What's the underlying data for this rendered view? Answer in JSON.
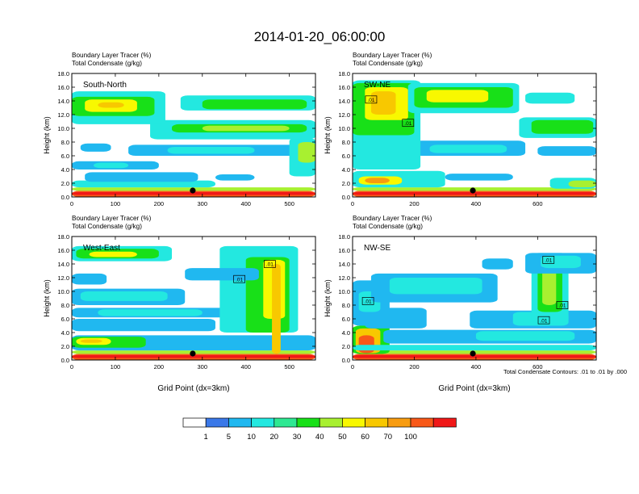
{
  "figure": {
    "title": "2014-01-20_06:00:00",
    "footer_note": "Total Condensate Contours: .01 to .01 by .000",
    "shared_xlabel": "Grid Point (dx=3km)"
  },
  "colorbar": {
    "colors": [
      "#ffffff",
      "#3a78e8",
      "#20b8f0",
      "#23e8e0",
      "#2ee892",
      "#18e018",
      "#a8f030",
      "#f8f800",
      "#f8c800",
      "#f89c10",
      "#f85818",
      "#f01818"
    ],
    "labels": [
      "1",
      "5",
      "10",
      "20",
      "30",
      "40",
      "50",
      "60",
      "70",
      "100"
    ]
  },
  "chart_data": [
    {
      "type": "heatmap",
      "title": "South-North",
      "subtitle_lines": [
        "Boundary Layer Tracer   (%)",
        "Total Condensate   (g/kg)"
      ],
      "ylabel": "Height (km)",
      "xlabel": "",
      "xlim": [
        0,
        560
      ],
      "ylim": [
        0,
        18
      ],
      "x_ticks": [
        0,
        100,
        200,
        300,
        400,
        500
      ],
      "y_ticks": [
        0.0,
        2.0,
        4.0,
        6.0,
        8.0,
        10.0,
        12.0,
        14.0,
        16.0,
        18.0
      ],
      "y_tick_labels": [
        "0.0",
        "2.0",
        "4.0",
        "6.0",
        "8.0",
        "10.0",
        "12.0",
        "14.0",
        "16.0",
        "18.0"
      ],
      "marker_x": 278,
      "contour_labels": [],
      "bands": [
        {
          "x": [
            0,
            560
          ],
          "y": [
            0,
            0.9
          ],
          "c": 10
        },
        {
          "x": [
            0,
            560
          ],
          "y": [
            0.3,
            0.7
          ],
          "c": 11
        },
        {
          "x": [
            0,
            560
          ],
          "y": [
            0.9,
            1.4
          ],
          "c": 6
        },
        {
          "x": [
            0,
            330
          ],
          "y": [
            1.4,
            2.4
          ],
          "c": 3
        },
        {
          "x": [
            30,
            290
          ],
          "y": [
            2.2,
            3.6
          ],
          "c": 2
        },
        {
          "x": [
            0,
            200
          ],
          "y": [
            4.0,
            5.2
          ],
          "c": 2
        },
        {
          "x": [
            50,
            130
          ],
          "y": [
            4.2,
            5.0
          ],
          "c": 3
        },
        {
          "x": [
            20,
            90
          ],
          "y": [
            6.6,
            7.8
          ],
          "c": 2
        },
        {
          "x": [
            130,
            540
          ],
          "y": [
            6.0,
            7.6
          ],
          "c": 2
        },
        {
          "x": [
            220,
            420
          ],
          "y": [
            6.3,
            7.3
          ],
          "c": 3
        },
        {
          "x": [
            500,
            560
          ],
          "y": [
            3.0,
            8.6
          ],
          "c": 3
        },
        {
          "x": [
            520,
            560
          ],
          "y": [
            5.0,
            8.0
          ],
          "c": 6
        },
        {
          "x": [
            330,
            420
          ],
          "y": [
            2.4,
            3.3
          ],
          "c": 2
        },
        {
          "x": [
            180,
            560
          ],
          "y": [
            8.4,
            11.2
          ],
          "c": 3
        },
        {
          "x": [
            230,
            540
          ],
          "y": [
            9.4,
            10.6
          ],
          "c": 5
        },
        {
          "x": [
            300,
            500
          ],
          "y": [
            9.6,
            10.4
          ],
          "c": 6
        },
        {
          "x": [
            0,
            215
          ],
          "y": [
            10.6,
            15.4
          ],
          "c": 3
        },
        {
          "x": [
            0,
            190
          ],
          "y": [
            11.8,
            14.6
          ],
          "c": 5
        },
        {
          "x": [
            30,
            150
          ],
          "y": [
            12.4,
            14.2
          ],
          "c": 7
        },
        {
          "x": [
            60,
            120
          ],
          "y": [
            13.0,
            13.8
          ],
          "c": 8
        },
        {
          "x": [
            250,
            560
          ],
          "y": [
            12.6,
            14.8
          ],
          "c": 3
        },
        {
          "x": [
            300,
            540
          ],
          "y": [
            12.8,
            14.2
          ],
          "c": 5
        }
      ]
    },
    {
      "type": "heatmap",
      "title": "SW-NE",
      "subtitle_lines": [
        "Boundary Layer Tracer   (%)",
        "Total Condensate   (g/kg)"
      ],
      "ylabel": "Height (km)",
      "xlabel": "",
      "xlim": [
        0,
        790
      ],
      "ylim": [
        0,
        18
      ],
      "x_ticks": [
        0,
        200,
        400,
        600
      ],
      "y_ticks": [
        0.0,
        2.0,
        4.0,
        6.0,
        8.0,
        10.0,
        12.0,
        14.0,
        16.0,
        18.0
      ],
      "y_tick_labels": [
        "0.0",
        "2.0",
        "4.0",
        "6.0",
        "8.0",
        "10.0",
        "12.0",
        "14.0",
        "16.0",
        "18.0"
      ],
      "marker_x": 390,
      "contour_labels": [
        {
          "text": ".01",
          "x": 60,
          "y": 14.2
        },
        {
          "text": ".01",
          "x": 180,
          "y": 10.8
        }
      ],
      "bands": [
        {
          "x": [
            0,
            790
          ],
          "y": [
            0,
            0.9
          ],
          "c": 10
        },
        {
          "x": [
            0,
            790
          ],
          "y": [
            0.3,
            0.7
          ],
          "c": 11
        },
        {
          "x": [
            0,
            790
          ],
          "y": [
            0.9,
            1.4
          ],
          "c": 6
        },
        {
          "x": [
            0,
            300
          ],
          "y": [
            1.4,
            3.8
          ],
          "c": 3
        },
        {
          "x": [
            20,
            160
          ],
          "y": [
            1.8,
            3.0
          ],
          "c": 7
        },
        {
          "x": [
            40,
            120
          ],
          "y": [
            2.0,
            2.8
          ],
          "c": 9
        },
        {
          "x": [
            300,
            520
          ],
          "y": [
            2.4,
            3.4
          ],
          "c": 2
        },
        {
          "x": [
            640,
            790
          ],
          "y": [
            1.2,
            2.8
          ],
          "c": 3
        },
        {
          "x": [
            700,
            790
          ],
          "y": [
            1.4,
            2.4
          ],
          "c": 6
        },
        {
          "x": [
            0,
            110
          ],
          "y": [
            4.6,
            9.6
          ],
          "c": 3
        },
        {
          "x": [
            200,
            560
          ],
          "y": [
            6.0,
            8.2
          ],
          "c": 2
        },
        {
          "x": [
            250,
            500
          ],
          "y": [
            6.4,
            7.6
          ],
          "c": 3
        },
        {
          "x": [
            600,
            790
          ],
          "y": [
            6.0,
            7.4
          ],
          "c": 2
        },
        {
          "x": [
            540,
            790
          ],
          "y": [
            8.6,
            11.6
          ],
          "c": 3
        },
        {
          "x": [
            580,
            780
          ],
          "y": [
            9.2,
            11.2
          ],
          "c": 5
        },
        {
          "x": [
            0,
            220
          ],
          "y": [
            4.0,
            17.0
          ],
          "c": 3
        },
        {
          "x": [
            0,
            200
          ],
          "y": [
            9.0,
            16.6
          ],
          "c": 5
        },
        {
          "x": [
            40,
            180
          ],
          "y": [
            11.2,
            16.0
          ],
          "c": 7
        },
        {
          "x": [
            60,
            140
          ],
          "y": [
            12.0,
            15.4
          ],
          "c": 8
        },
        {
          "x": [
            180,
            540
          ],
          "y": [
            12.2,
            16.6
          ],
          "c": 3
        },
        {
          "x": [
            200,
            520
          ],
          "y": [
            13.0,
            16.0
          ],
          "c": 5
        },
        {
          "x": [
            240,
            440
          ],
          "y": [
            13.8,
            15.6
          ],
          "c": 7
        },
        {
          "x": [
            560,
            720
          ],
          "y": [
            13.6,
            15.2
          ],
          "c": 3
        }
      ]
    },
    {
      "type": "heatmap",
      "title": "West-East",
      "subtitle_lines": [
        "Boundary Layer Tracer   (%)",
        "Total Condensate   (g/kg)"
      ],
      "ylabel": "Height (km)",
      "xlabel": "Grid Point (dx=3km)",
      "xlim": [
        0,
        560
      ],
      "ylim": [
        0,
        18
      ],
      "x_ticks": [
        0,
        100,
        200,
        300,
        400,
        500
      ],
      "y_ticks": [
        0.0,
        2.0,
        4.0,
        6.0,
        8.0,
        10.0,
        12.0,
        14.0,
        16.0,
        18.0
      ],
      "y_tick_labels": [
        "0.0",
        "2.0",
        "4.0",
        "6.0",
        "8.0",
        "10.0",
        "12.0",
        "14.0",
        "16.0",
        "18.0"
      ],
      "marker_x": 278,
      "contour_labels": [
        {
          "text": ".01",
          "x": 455,
          "y": 14.0
        },
        {
          "text": ".01",
          "x": 385,
          "y": 11.8
        }
      ],
      "bands": [
        {
          "x": [
            0,
            560
          ],
          "y": [
            0,
            0.9
          ],
          "c": 10
        },
        {
          "x": [
            0,
            560
          ],
          "y": [
            0.3,
            0.7
          ],
          "c": 11
        },
        {
          "x": [
            0,
            560
          ],
          "y": [
            0.9,
            1.4
          ],
          "c": 6
        },
        {
          "x": [
            0,
            560
          ],
          "y": [
            1.4,
            3.6
          ],
          "c": 2
        },
        {
          "x": [
            0,
            170
          ],
          "y": [
            1.8,
            3.4
          ],
          "c": 5
        },
        {
          "x": [
            10,
            90
          ],
          "y": [
            2.2,
            3.2
          ],
          "c": 7
        },
        {
          "x": [
            20,
            70
          ],
          "y": [
            2.5,
            3.0
          ],
          "c": 8
        },
        {
          "x": [
            0,
            330
          ],
          "y": [
            4.2,
            6.0
          ],
          "c": 2
        },
        {
          "x": [
            0,
            420
          ],
          "y": [
            6.2,
            7.6
          ],
          "c": 2
        },
        {
          "x": [
            60,
            300
          ],
          "y": [
            6.4,
            7.4
          ],
          "c": 3
        },
        {
          "x": [
            0,
            260
          ],
          "y": [
            8.0,
            10.4
          ],
          "c": 2
        },
        {
          "x": [
            20,
            220
          ],
          "y": [
            8.6,
            10.0
          ],
          "c": 3
        },
        {
          "x": [
            340,
            520
          ],
          "y": [
            4.0,
            16.6
          ],
          "c": 3
        },
        {
          "x": [
            400,
            500
          ],
          "y": [
            4.0,
            15.0
          ],
          "c": 5
        },
        {
          "x": [
            440,
            490
          ],
          "y": [
            6.0,
            14.6
          ],
          "c": 7
        },
        {
          "x": [
            460,
            480
          ],
          "y": [
            0.9,
            14.0
          ],
          "c": 8
        },
        {
          "x": [
            260,
            430
          ],
          "y": [
            11.6,
            13.4
          ],
          "c": 2
        },
        {
          "x": [
            0,
            230
          ],
          "y": [
            14.4,
            16.6
          ],
          "c": 3
        },
        {
          "x": [
            10,
            200
          ],
          "y": [
            14.8,
            16.2
          ],
          "c": 5
        },
        {
          "x": [
            40,
            150
          ],
          "y": [
            15.0,
            15.8
          ],
          "c": 7
        },
        {
          "x": [
            0,
            80
          ],
          "y": [
            11.0,
            12.6
          ],
          "c": 2
        }
      ]
    },
    {
      "type": "heatmap",
      "title": "NW-SE",
      "subtitle_lines": [
        "Boundary Layer Tracer   (%)",
        "Total Condensate   (g/kg)"
      ],
      "ylabel": "Height (km)",
      "xlabel": "Grid Point (dx=3km)",
      "xlim": [
        0,
        790
      ],
      "ylim": [
        0,
        18
      ],
      "x_ticks": [
        0,
        200,
        400,
        600
      ],
      "y_ticks": [
        0.0,
        2.0,
        4.0,
        6.0,
        8.0,
        10.0,
        12.0,
        14.0,
        16.0,
        18.0
      ],
      "y_tick_labels": [
        "0.0",
        "2.0",
        "4.0",
        "6.0",
        "8.0",
        "10.0",
        "12.0",
        "14.0",
        "16.0",
        "18.0"
      ],
      "marker_x": 390,
      "contour_labels": [
        {
          "text": ".01",
          "x": 50,
          "y": 8.6
        },
        {
          "text": ".01",
          "x": 635,
          "y": 14.6
        },
        {
          "text": ".01",
          "x": 680,
          "y": 8.0
        },
        {
          "text": ".01",
          "x": 620,
          "y": 5.8
        }
      ],
      "bands": [
        {
          "x": [
            0,
            790
          ],
          "y": [
            0,
            0.9
          ],
          "c": 10
        },
        {
          "x": [
            0,
            790
          ],
          "y": [
            0.3,
            0.7
          ],
          "c": 11
        },
        {
          "x": [
            0,
            790
          ],
          "y": [
            0.9,
            1.4
          ],
          "c": 6
        },
        {
          "x": [
            0,
            120
          ],
          "y": [
            0.9,
            5.0
          ],
          "c": 5
        },
        {
          "x": [
            10,
            90
          ],
          "y": [
            1.0,
            4.6
          ],
          "c": 8
        },
        {
          "x": [
            20,
            70
          ],
          "y": [
            1.0,
            3.6
          ],
          "c": 10
        },
        {
          "x": [
            0,
            790
          ],
          "y": [
            1.4,
            2.2
          ],
          "c": 3
        },
        {
          "x": [
            100,
            790
          ],
          "y": [
            2.4,
            4.4
          ],
          "c": 2
        },
        {
          "x": [
            400,
            720
          ],
          "y": [
            2.8,
            4.2
          ],
          "c": 3
        },
        {
          "x": [
            40,
            240
          ],
          "y": [
            4.6,
            7.6
          ],
          "c": 2
        },
        {
          "x": [
            380,
            790
          ],
          "y": [
            4.6,
            7.2
          ],
          "c": 2
        },
        {
          "x": [
            520,
            700
          ],
          "y": [
            5.0,
            7.0
          ],
          "c": 3
        },
        {
          "x": [
            0,
            120
          ],
          "y": [
            5.0,
            11.6
          ],
          "c": 2
        },
        {
          "x": [
            20,
            90
          ],
          "y": [
            7.0,
            10.0
          ],
          "c": 3
        },
        {
          "x": [
            60,
            470
          ],
          "y": [
            8.4,
            12.6
          ],
          "c": 2
        },
        {
          "x": [
            120,
            420
          ],
          "y": [
            9.6,
            12.0
          ],
          "c": 3
        },
        {
          "x": [
            580,
            700
          ],
          "y": [
            5.4,
            15.6
          ],
          "c": 3
        },
        {
          "x": [
            600,
            680
          ],
          "y": [
            7.0,
            15.0
          ],
          "c": 5
        },
        {
          "x": [
            615,
            660
          ],
          "y": [
            8.0,
            14.0
          ],
          "c": 6
        },
        {
          "x": [
            560,
            790
          ],
          "y": [
            12.6,
            15.6
          ],
          "c": 2
        },
        {
          "x": [
            610,
            740
          ],
          "y": [
            13.4,
            15.2
          ],
          "c": 3
        },
        {
          "x": [
            420,
            520
          ],
          "y": [
            13.2,
            14.8
          ],
          "c": 2
        }
      ]
    }
  ]
}
